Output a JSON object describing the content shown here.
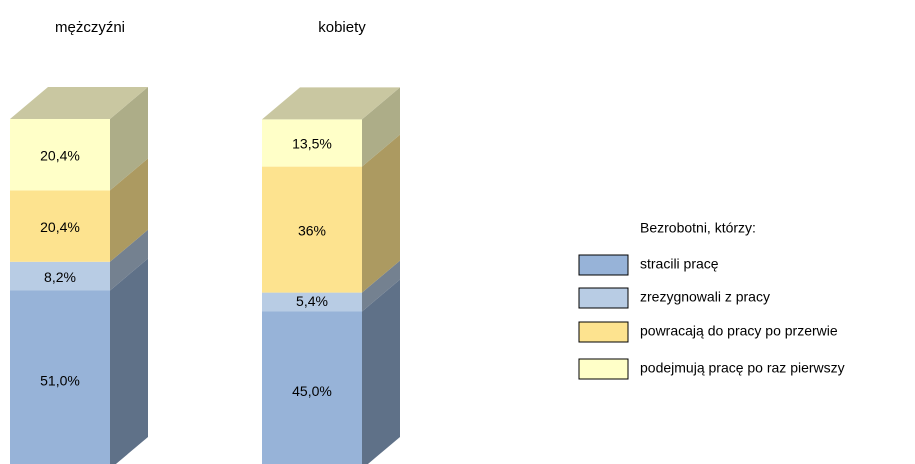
{
  "chart_data": {
    "type": "stacked-bar-3d",
    "categories": [
      "mężczyźni",
      "kobiety"
    ],
    "ylim": [
      0,
      100
    ],
    "legend_title": "Bezrobotni, którzy:",
    "series": [
      {
        "name": "stracili pracę",
        "color": "#97b3d8",
        "values": [
          51.0,
          45.0
        ],
        "value_labels": [
          "51,0%",
          "45,0%"
        ]
      },
      {
        "name": "zrezygnowali z pracy",
        "color": "#b8cce4",
        "values": [
          8.2,
          5.4
        ],
        "value_labels": [
          "8,2%",
          "5,4%"
        ]
      },
      {
        "name": "powracają do pracy po przerwie",
        "color": "#fde38f",
        "values": [
          20.4,
          36
        ],
        "value_labels": [
          "20,4%",
          "36%"
        ]
      },
      {
        "name": "podejmują pracę po raz pierwszy",
        "color": "#ffffc8",
        "values": [
          20.4,
          13.5
        ],
        "value_labels": [
          "20,4%",
          "13,5%"
        ]
      }
    ]
  }
}
